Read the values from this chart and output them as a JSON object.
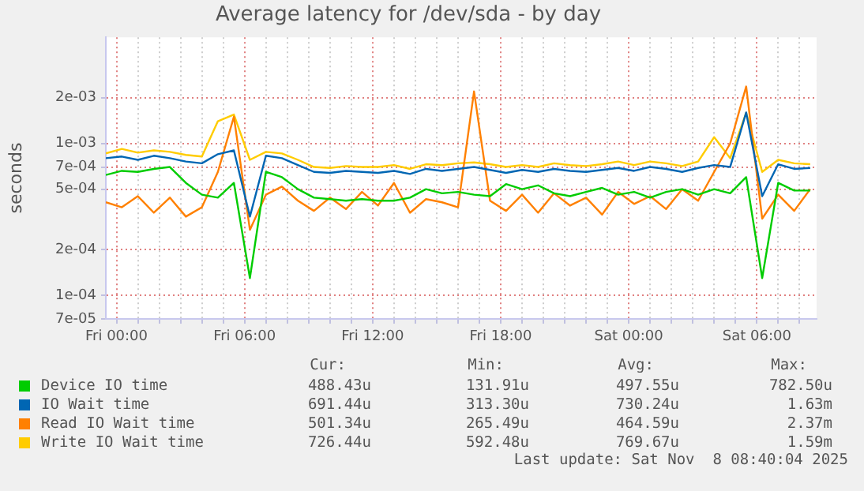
{
  "chart_data": {
    "type": "line",
    "title": "Average latency for /dev/sda - by day",
    "ylabel": "seconds",
    "x": [
      "2025-11-06T23:30",
      "2025-11-07T00:15",
      "2025-11-07T01:00",
      "2025-11-07T01:45",
      "2025-11-07T02:30",
      "2025-11-07T03:15",
      "2025-11-07T04:00",
      "2025-11-07T04:45",
      "2025-11-07T05:30",
      "2025-11-07T06:15",
      "2025-11-07T07:00",
      "2025-11-07T07:45",
      "2025-11-07T08:30",
      "2025-11-07T09:15",
      "2025-11-07T10:00",
      "2025-11-07T10:45",
      "2025-11-07T11:30",
      "2025-11-07T12:15",
      "2025-11-07T13:00",
      "2025-11-07T13:45",
      "2025-11-07T14:30",
      "2025-11-07T15:15",
      "2025-11-07T16:00",
      "2025-11-07T16:45",
      "2025-11-07T17:30",
      "2025-11-07T18:15",
      "2025-11-07T19:00",
      "2025-11-07T19:45",
      "2025-11-07T20:30",
      "2025-11-07T21:15",
      "2025-11-07T22:00",
      "2025-11-07T22:45",
      "2025-11-07T23:30",
      "2025-11-08T00:15",
      "2025-11-08T01:00",
      "2025-11-08T01:45",
      "2025-11-08T02:30",
      "2025-11-08T03:15",
      "2025-11-08T04:00",
      "2025-11-08T04:45",
      "2025-11-08T05:30",
      "2025-11-08T06:15",
      "2025-11-08T07:00",
      "2025-11-08T07:45",
      "2025-11-08T08:30"
    ],
    "series": [
      {
        "name": "Device IO time",
        "color": "#00cc00",
        "values": [
          0.00062,
          0.00066,
          0.00065,
          0.00068,
          0.0007,
          0.00055,
          0.00046,
          0.00044,
          0.00055,
          0.00013,
          0.00065,
          0.0006,
          0.0005,
          0.00044,
          0.00043,
          0.00042,
          0.00043,
          0.00042,
          0.00042,
          0.00044,
          0.0005,
          0.00047,
          0.00048,
          0.00046,
          0.00045,
          0.00054,
          0.0005,
          0.00053,
          0.00047,
          0.00045,
          0.00048,
          0.00051,
          0.00046,
          0.00048,
          0.00044,
          0.00048,
          0.0005,
          0.00046,
          0.0005,
          0.00047,
          0.0006,
          0.00013,
          0.00055,
          0.00049,
          0.00049
        ]
      },
      {
        "name": "IO Wait time",
        "color": "#0066b3",
        "values": [
          0.0008,
          0.00082,
          0.00078,
          0.00083,
          0.0008,
          0.00076,
          0.00074,
          0.00085,
          0.0009,
          0.00033,
          0.00083,
          0.0008,
          0.00072,
          0.00065,
          0.00064,
          0.00066,
          0.00065,
          0.00064,
          0.00066,
          0.00063,
          0.00068,
          0.00066,
          0.00068,
          0.0007,
          0.00067,
          0.00064,
          0.00067,
          0.00065,
          0.00068,
          0.00066,
          0.00065,
          0.00067,
          0.00069,
          0.00066,
          0.0007,
          0.00068,
          0.00065,
          0.00069,
          0.00072,
          0.0007,
          0.0016,
          0.00045,
          0.00073,
          0.00068,
          0.00069
        ]
      },
      {
        "name": "Read IO Wait time",
        "color": "#ff8000",
        "values": [
          0.00041,
          0.00038,
          0.00045,
          0.00035,
          0.00044,
          0.00033,
          0.00038,
          0.00065,
          0.0015,
          0.00027,
          0.00046,
          0.00052,
          0.00042,
          0.00036,
          0.00044,
          0.00037,
          0.00048,
          0.00039,
          0.00055,
          0.00035,
          0.00043,
          0.00041,
          0.00038,
          0.0022,
          0.00042,
          0.00036,
          0.00046,
          0.00035,
          0.00047,
          0.00039,
          0.00044,
          0.00034,
          0.00048,
          0.0004,
          0.00045,
          0.00037,
          0.0005,
          0.00042,
          0.00065,
          0.001,
          0.00237,
          0.00032,
          0.00046,
          0.00036,
          0.0005
        ]
      },
      {
        "name": "Write IO Wait time",
        "color": "#ffcc00",
        "values": [
          0.00086,
          0.00092,
          0.00087,
          0.0009,
          0.00088,
          0.00084,
          0.00082,
          0.0014,
          0.00155,
          0.00078,
          0.00088,
          0.00086,
          0.00078,
          0.0007,
          0.00069,
          0.00071,
          0.0007,
          0.0007,
          0.00072,
          0.00068,
          0.00073,
          0.00072,
          0.00074,
          0.00075,
          0.00073,
          0.0007,
          0.00072,
          0.0007,
          0.00074,
          0.00072,
          0.00071,
          0.00073,
          0.00076,
          0.00072,
          0.00076,
          0.00074,
          0.00071,
          0.00076,
          0.0011,
          0.0008,
          0.00159,
          0.00065,
          0.00078,
          0.00074,
          0.00073
        ]
      }
    ],
    "xlim": [
      "2025-11-06T23:30",
      "2025-11-08T08:48"
    ],
    "xticks": [
      {
        "value": "2025-11-07T00:00",
        "label": "Fri 00:00"
      },
      {
        "value": "2025-11-07T01:00",
        "label": null
      },
      {
        "value": "2025-11-07T02:00",
        "label": null
      },
      {
        "value": "2025-11-07T03:00",
        "label": null
      },
      {
        "value": "2025-11-07T04:00",
        "label": null
      },
      {
        "value": "2025-11-07T05:00",
        "label": null
      },
      {
        "value": "2025-11-07T06:00",
        "label": "Fri 06:00"
      },
      {
        "value": "2025-11-07T07:00",
        "label": null
      },
      {
        "value": "2025-11-07T08:00",
        "label": null
      },
      {
        "value": "2025-11-07T09:00",
        "label": null
      },
      {
        "value": "2025-11-07T10:00",
        "label": null
      },
      {
        "value": "2025-11-07T11:00",
        "label": null
      },
      {
        "value": "2025-11-07T12:00",
        "label": "Fri 12:00"
      },
      {
        "value": "2025-11-07T13:00",
        "label": null
      },
      {
        "value": "2025-11-07T14:00",
        "label": null
      },
      {
        "value": "2025-11-07T15:00",
        "label": null
      },
      {
        "value": "2025-11-07T16:00",
        "label": null
      },
      {
        "value": "2025-11-07T17:00",
        "label": null
      },
      {
        "value": "2025-11-07T18:00",
        "label": "Fri 18:00"
      },
      {
        "value": "2025-11-07T19:00",
        "label": null
      },
      {
        "value": "2025-11-07T20:00",
        "label": null
      },
      {
        "value": "2025-11-07T21:00",
        "label": null
      },
      {
        "value": "2025-11-07T22:00",
        "label": null
      },
      {
        "value": "2025-11-07T23:00",
        "label": null
      },
      {
        "value": "2025-11-08T00:00",
        "label": "Sat 00:00"
      },
      {
        "value": "2025-11-08T01:00",
        "label": null
      },
      {
        "value": "2025-11-08T02:00",
        "label": null
      },
      {
        "value": "2025-11-08T03:00",
        "label": null
      },
      {
        "value": "2025-11-08T04:00",
        "label": null
      },
      {
        "value": "2025-11-08T05:00",
        "label": null
      },
      {
        "value": "2025-11-08T06:00",
        "label": "Sat 06:00"
      },
      {
        "value": "2025-11-08T07:00",
        "label": null
      },
      {
        "value": "2025-11-08T08:00",
        "label": null
      }
    ],
    "ylim": [
      7e-05,
      0.005
    ],
    "yticks": [
      {
        "value": 7e-05,
        "label": "7e-05"
      },
      {
        "value": 0.0001,
        "label": "1e-04"
      },
      {
        "value": 0.0002,
        "label": "2e-04"
      },
      {
        "value": 0.0005,
        "label": "5e-04"
      },
      {
        "value": 0.0007,
        "label": "7e-04"
      },
      {
        "value": 0.001,
        "label": "1e-03"
      },
      {
        "value": 0.002,
        "label": "2e-03"
      }
    ],
    "log": "y",
    "grid": true,
    "legend": "bottom",
    "marker": "none",
    "line_style": "solid",
    "annotations": [
      "Cur:",
      "Min:",
      "Avg:",
      "Max:",
      "488.43u",
      "131.91u",
      "497.55u",
      "782.50u",
      "691.44u",
      "313.30u",
      "730.24u",
      "1.63m",
      "501.34u",
      "265.49u",
      "464.59u",
      "2.37m",
      "726.44u",
      "592.48u",
      "769.67u",
      "1.59m",
      "Last update: Sat Nov  8 08:40:04 2025"
    ]
  }
}
